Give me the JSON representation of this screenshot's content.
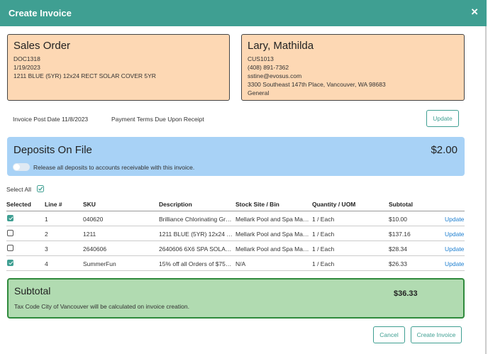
{
  "header": {
    "title": "Create Invoice",
    "close": "×"
  },
  "sales_order": {
    "title": "Sales Order",
    "lines": [
      "DOC1318",
      "1/19/2023",
      "1211 BLUE (5YR) 12x24 RECT SOLAR COVER 5YR"
    ]
  },
  "customer": {
    "title": "Lary, Mathilda",
    "lines": [
      "CUS1013",
      "(408) 891-7362",
      "sstine@evosus.com",
      "3300 Southeast 147th Place, Vancouver, WA 98683",
      "General"
    ]
  },
  "invoice_info": {
    "post_date": "Invoice Post Date 11/8/2023",
    "payment_terms": "Payment Terms Due Upon Receipt",
    "update": "Update"
  },
  "deposits": {
    "title": "Deposits On File",
    "amount": "$2.00",
    "toggle_label": "Release all deposits to accounts receivable with this invoice."
  },
  "select_all": "Select All",
  "table": {
    "columns": [
      "Selected",
      "Line #",
      "SKU",
      "Description",
      "Stock Site / Bin",
      "Quantity / UOM",
      "Subtotal"
    ],
    "rows": [
      {
        "selected": true,
        "line": "1",
        "sku": "040620",
        "description": "Brilliance Chlorinating Gr…",
        "site": "Mellark Pool and Spa Ma…",
        "qty": "1 / Each",
        "subtotal": "$10.00",
        "action": "Update"
      },
      {
        "selected": false,
        "line": "2",
        "sku": "1211",
        "description": "1211 BLUE (5YR) 12x24 …",
        "site": "Mellark Pool and Spa Ma…",
        "qty": "1 / Each",
        "subtotal": "$137.16",
        "action": "Update"
      },
      {
        "selected": false,
        "line": "3",
        "sku": "2640606",
        "description": "2640606 6X6 SPA SOLA…",
        "site": "Mellark Pool and Spa Ma…",
        "qty": "1 / Each",
        "subtotal": "$28.34",
        "action": "Update"
      },
      {
        "selected": true,
        "line": "4",
        "sku": "SummerFun",
        "description": "15% off all Orders of $75…",
        "site": "N/A",
        "qty": "1 / Each",
        "subtotal": "$26.33",
        "action": "Update"
      }
    ]
  },
  "subtotal": {
    "title": "Subtotal",
    "amount": "$36.33",
    "note": "Tax Code City of Vancouver will be calculated on invoice creation."
  },
  "footer": {
    "cancel": "Cancel",
    "create": "Create Invoice"
  }
}
